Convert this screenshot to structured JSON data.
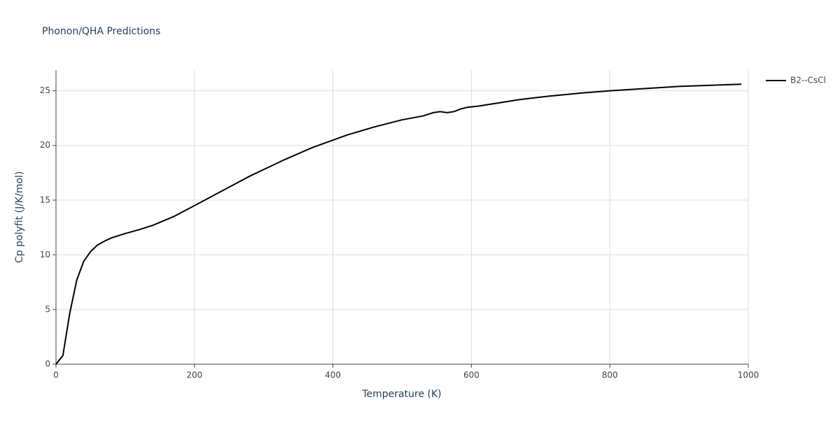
{
  "chart_data": {
    "type": "line",
    "title": "Phonon/QHA Predictions",
    "x_label": "Temperature (K)",
    "y_label": "Cp polyfit (J/K/mol)",
    "x": [
      0,
      10,
      20,
      30,
      40,
      50,
      60,
      70,
      80,
      100,
      120,
      140,
      170,
      200,
      240,
      280,
      330,
      370,
      420,
      460,
      500,
      530,
      545,
      555,
      565,
      575,
      585,
      595,
      610,
      640,
      670,
      710,
      760,
      800,
      850,
      900,
      990
    ],
    "series": [
      {
        "name": "B2--CsCl",
        "color": "#000000",
        "values": [
          0,
          0.8,
          4.7,
          7.7,
          9.4,
          10.3,
          10.9,
          11.25,
          11.55,
          11.95,
          12.3,
          12.7,
          13.5,
          14.5,
          15.85,
          17.2,
          18.7,
          19.8,
          20.95,
          21.7,
          22.35,
          22.7,
          23.0,
          23.1,
          23.0,
          23.1,
          23.35,
          23.5,
          23.6,
          23.9,
          24.2,
          24.5,
          24.8,
          25.0,
          25.2,
          25.4,
          25.6
        ]
      }
    ],
    "xlim": [
      0,
      1000
    ],
    "xticks": [
      0,
      200,
      400,
      600,
      800,
      1000
    ],
    "ylim": [
      0,
      26.9
    ],
    "yticks": [
      0,
      5,
      10,
      15,
      20,
      25
    ],
    "grid": true,
    "legend": "right"
  }
}
